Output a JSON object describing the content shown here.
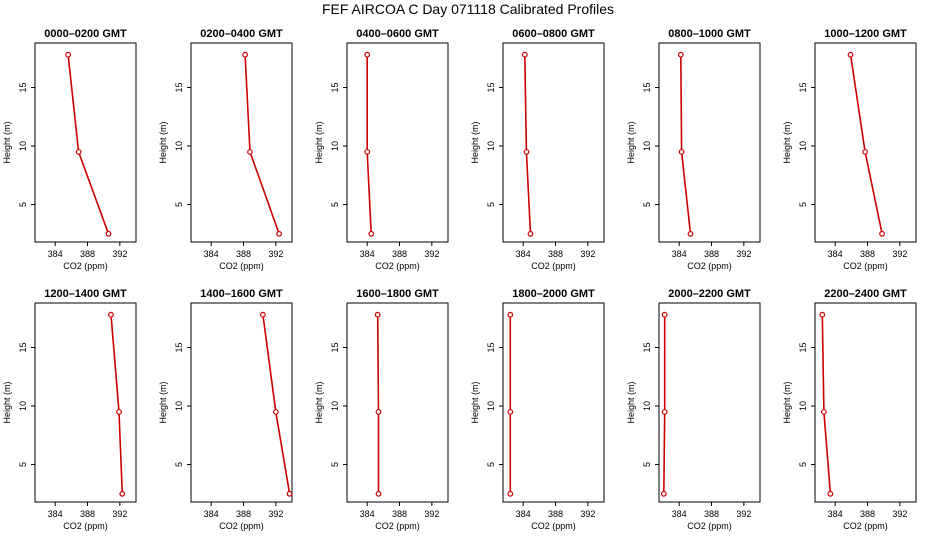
{
  "figure": {
    "title": "FEF AIRCOA C  Day 071118  Calibrated Profiles"
  },
  "chart_data": [
    {
      "type": "line",
      "title": "0000–0200 GMT",
      "xlabel": "CO2 (ppm)",
      "ylabel": "Height (m)",
      "xlim": [
        381.5,
        394
      ],
      "ylim": [
        1.8,
        18.8
      ],
      "x_ticks": [
        384,
        388,
        392
      ],
      "x_tick_labels": [
        "384",
        "388",
        "392"
      ],
      "y_ticks": [
        5,
        10,
        15
      ],
      "y_tick_labels": [
        "5",
        "10",
        "15"
      ],
      "series_color": "#cc0000",
      "x": [
        385.6,
        386.9,
        390.6
      ],
      "y": [
        17.8,
        9.5,
        2.5
      ]
    },
    {
      "type": "line",
      "title": "0200–0400 GMT",
      "xlabel": "CO2 (ppm)",
      "ylabel": "Height (m)",
      "xlim": [
        381.5,
        394
      ],
      "ylim": [
        1.8,
        18.8
      ],
      "x_ticks": [
        384,
        388,
        392
      ],
      "x_tick_labels": [
        "384",
        "388",
        "392"
      ],
      "y_ticks": [
        5,
        10,
        15
      ],
      "y_tick_labels": [
        "5",
        "10",
        "15"
      ],
      "series_color": "#cc0000",
      "x": [
        388.2,
        388.8,
        392.4
      ],
      "y": [
        17.8,
        9.5,
        2.5
      ]
    },
    {
      "type": "line",
      "title": "0400–0600 GMT",
      "xlabel": "CO2 (ppm)",
      "ylabel": "Height (m)",
      "xlim": [
        381.5,
        394
      ],
      "ylim": [
        1.8,
        18.8
      ],
      "x_ticks": [
        384,
        388,
        392
      ],
      "x_tick_labels": [
        "384",
        "388",
        "392"
      ],
      "y_ticks": [
        5,
        10,
        15
      ],
      "y_tick_labels": [
        "5",
        "10",
        "15"
      ],
      "series_color": "#cc0000",
      "x": [
        384.0,
        384.0,
        384.5
      ],
      "y": [
        17.8,
        9.5,
        2.5
      ]
    },
    {
      "type": "line",
      "title": "0600–0800 GMT",
      "xlabel": "CO2 (ppm)",
      "ylabel": "Height (m)",
      "xlim": [
        381.5,
        394
      ],
      "ylim": [
        1.8,
        18.8
      ],
      "x_ticks": [
        384,
        388,
        392
      ],
      "x_tick_labels": [
        "384",
        "388",
        "392"
      ],
      "y_ticks": [
        5,
        10,
        15
      ],
      "y_tick_labels": [
        "5",
        "10",
        "15"
      ],
      "series_color": "#cc0000",
      "x": [
        384.2,
        384.4,
        384.9
      ],
      "y": [
        17.8,
        9.5,
        2.5
      ]
    },
    {
      "type": "line",
      "title": "0800–1000 GMT",
      "xlabel": "CO2 (ppm)",
      "ylabel": "Height (m)",
      "xlim": [
        381.5,
        394
      ],
      "ylim": [
        1.8,
        18.8
      ],
      "x_ticks": [
        384,
        388,
        392
      ],
      "x_tick_labels": [
        "384",
        "388",
        "392"
      ],
      "y_ticks": [
        5,
        10,
        15
      ],
      "y_tick_labels": [
        "5",
        "10",
        "15"
      ],
      "series_color": "#cc0000",
      "x": [
        384.2,
        384.3,
        385.4
      ],
      "y": [
        17.8,
        9.5,
        2.5
      ]
    },
    {
      "type": "line",
      "title": "1000–1200 GMT",
      "xlabel": "CO2 (ppm)",
      "ylabel": "Height (m)",
      "xlim": [
        381.5,
        394
      ],
      "ylim": [
        1.8,
        18.8
      ],
      "x_ticks": [
        384,
        388,
        392
      ],
      "x_tick_labels": [
        "384",
        "388",
        "392"
      ],
      "y_ticks": [
        5,
        10,
        15
      ],
      "y_tick_labels": [
        "5",
        "10",
        "15"
      ],
      "series_color": "#cc0000",
      "x": [
        385.9,
        387.7,
        389.8
      ],
      "y": [
        17.8,
        9.5,
        2.5
      ]
    },
    {
      "type": "line",
      "title": "1200–1400 GMT",
      "xlabel": "CO2 (ppm)",
      "ylabel": "Height (m)",
      "xlim": [
        381.5,
        394
      ],
      "ylim": [
        1.8,
        18.8
      ],
      "x_ticks": [
        384,
        388,
        392
      ],
      "x_tick_labels": [
        "384",
        "388",
        "392"
      ],
      "y_ticks": [
        5,
        10,
        15
      ],
      "y_tick_labels": [
        "5",
        "10",
        "15"
      ],
      "series_color": "#cc0000",
      "x": [
        390.9,
        391.9,
        392.3
      ],
      "y": [
        17.8,
        9.5,
        2.5
      ]
    },
    {
      "type": "line",
      "title": "1400–1600 GMT",
      "xlabel": "CO2 (ppm)",
      "ylabel": "Height (m)",
      "xlim": [
        381.5,
        394
      ],
      "ylim": [
        1.8,
        18.8
      ],
      "x_ticks": [
        384,
        388,
        392
      ],
      "x_tick_labels": [
        "384",
        "388",
        "392"
      ],
      "y_ticks": [
        5,
        10,
        15
      ],
      "y_tick_labels": [
        "5",
        "10",
        "15"
      ],
      "series_color": "#cc0000",
      "x": [
        390.4,
        392.0,
        393.7
      ],
      "y": [
        17.8,
        9.5,
        2.5
      ]
    },
    {
      "type": "line",
      "title": "1600–1800 GMT",
      "xlabel": "CO2 (ppm)",
      "ylabel": "Height (m)",
      "xlim": [
        381.5,
        394
      ],
      "ylim": [
        1.8,
        18.8
      ],
      "x_ticks": [
        384,
        388,
        392
      ],
      "x_tick_labels": [
        "384",
        "388",
        "392"
      ],
      "y_ticks": [
        5,
        10,
        15
      ],
      "y_tick_labels": [
        "5",
        "10",
        "15"
      ],
      "series_color": "#cc0000",
      "x": [
        385.3,
        385.4,
        385.4
      ],
      "y": [
        17.8,
        9.5,
        2.5
      ]
    },
    {
      "type": "line",
      "title": "1800–2000 GMT",
      "xlabel": "CO2 (ppm)",
      "ylabel": "Height (m)",
      "xlim": [
        381.5,
        394
      ],
      "ylim": [
        1.8,
        18.8
      ],
      "x_ticks": [
        384,
        388,
        392
      ],
      "x_tick_labels": [
        "384",
        "388",
        "392"
      ],
      "y_ticks": [
        5,
        10,
        15
      ],
      "y_tick_labels": [
        "5",
        "10",
        "15"
      ],
      "series_color": "#cc0000",
      "x": [
        382.4,
        382.4,
        382.4
      ],
      "y": [
        17.8,
        9.5,
        2.5
      ]
    },
    {
      "type": "line",
      "title": "2000–2200 GMT",
      "xlabel": "CO2 (ppm)",
      "ylabel": "Height (m)",
      "xlim": [
        381.5,
        394
      ],
      "ylim": [
        1.8,
        18.8
      ],
      "x_ticks": [
        384,
        388,
        392
      ],
      "x_tick_labels": [
        "384",
        "388",
        "392"
      ],
      "y_ticks": [
        5,
        10,
        15
      ],
      "y_tick_labels": [
        "5",
        "10",
        "15"
      ],
      "series_color": "#cc0000",
      "x": [
        382.2,
        382.2,
        382.1
      ],
      "y": [
        17.8,
        9.5,
        2.5
      ]
    },
    {
      "type": "line",
      "title": "2200–2400 GMT",
      "xlabel": "CO2 (ppm)",
      "ylabel": "Height (m)",
      "xlim": [
        381.5,
        394
      ],
      "ylim": [
        1.8,
        18.8
      ],
      "x_ticks": [
        384,
        388,
        392
      ],
      "x_tick_labels": [
        "384",
        "388",
        "392"
      ],
      "y_ticks": [
        5,
        10,
        15
      ],
      "y_tick_labels": [
        "5",
        "10",
        "15"
      ],
      "series_color": "#cc0000",
      "x": [
        382.4,
        382.6,
        383.4
      ],
      "y": [
        17.8,
        9.5,
        2.5
      ]
    }
  ]
}
